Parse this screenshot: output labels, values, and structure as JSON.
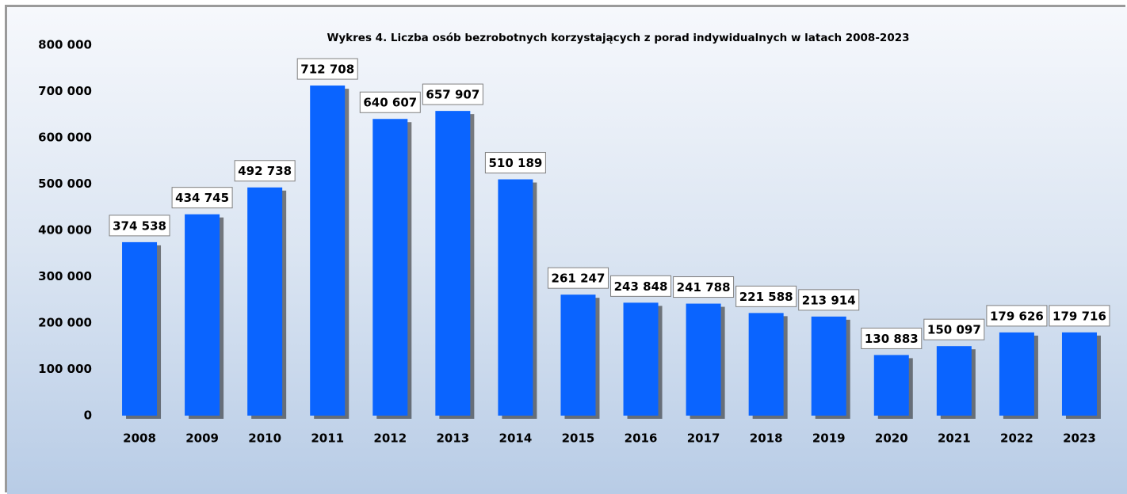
{
  "chart_data": {
    "type": "bar",
    "title": "Wykres 4. Liczba osób bezrobotnych korzystających z porad indywidualnych w latach 2008-2023",
    "categories": [
      "2008",
      "2009",
      "2010",
      "2011",
      "2012",
      "2013",
      "2014",
      "2015",
      "2016",
      "2017",
      "2018",
      "2019",
      "2020",
      "2021",
      "2022",
      "2023"
    ],
    "values": [
      374538,
      434745,
      492738,
      712708,
      640607,
      657907,
      510189,
      261247,
      243848,
      241788,
      221588,
      213914,
      130883,
      150097,
      179626,
      179716
    ],
    "value_labels": [
      "374 538",
      "434 745",
      "492 738",
      "712 708",
      "640 607",
      "657 907",
      "510 189",
      "261 247",
      "243 848",
      "241 788",
      "221 588",
      "213 914",
      "130 883",
      "150 097",
      "179 626",
      "179 716"
    ],
    "color": "#0a64ff",
    "ylim": [
      0,
      800000
    ],
    "yticks": [
      0,
      {
        "value": 100000,
        "label": "100 000"
      },
      {
        "value": 200000,
        "label": "200 000"
      },
      {
        "value": 300000,
        "label": "300 000"
      },
      {
        "value": 400000,
        "label": "400 000"
      },
      {
        "value": 500000,
        "label": "500 000"
      },
      {
        "value": 600000,
        "label": "600 000"
      },
      {
        "value": 700000,
        "label": "700 000"
      },
      {
        "value": 800000,
        "label": "800 000"
      }
    ]
  }
}
